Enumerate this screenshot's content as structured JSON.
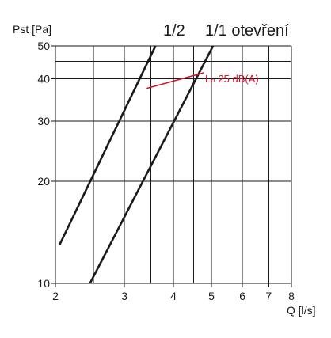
{
  "chart_data": {
    "type": "line",
    "title": "",
    "header": {
      "left": "1/2",
      "right": "1/1 otevření"
    },
    "xlabel": "Q [l/s]",
    "ylabel": "Pst [Pa]",
    "xscale": "log",
    "yscale": "log",
    "xlim": [
      2,
      8
    ],
    "ylim": [
      10,
      50
    ],
    "x_ticks": [
      2,
      3,
      4,
      5,
      6,
      7,
      8
    ],
    "y_ticks": [
      10,
      20,
      30,
      40,
      50
    ],
    "x_minor_gridlines": [
      2.5,
      3.5,
      4.5
    ],
    "y_minor_gridlines": [
      45
    ],
    "grid": true,
    "series": [
      {
        "name": "1/2",
        "x": [
          2.05,
          3.6
        ],
        "y": [
          13.0,
          50.0
        ]
      },
      {
        "name": "1/1 otevření",
        "x": [
          2.45,
          5.05
        ],
        "y": [
          10.0,
          50.0
        ]
      }
    ],
    "annotations": [
      {
        "text": "Lₚ 25 dB(A)",
        "color": "#d2142b",
        "points_to": {
          "x": 3.42,
          "y": 37.5
        }
      }
    ],
    "colors": {
      "lines": "#1a1a1a",
      "annotation": "#d2142b"
    }
  }
}
